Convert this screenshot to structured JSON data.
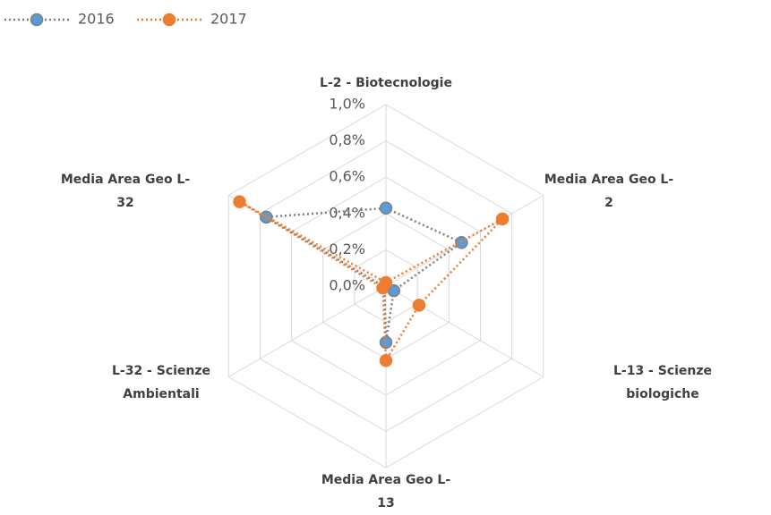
{
  "chart_data": {
    "type": "radar",
    "categories": [
      "L-2 - Biotecnologie",
      "Media Area Geo L-2",
      "L-13 - Scienze biologiche",
      "Media Area Geo L-13",
      "L-32 - Scienze Ambientali",
      "Media Area Geo L-32"
    ],
    "series": [
      {
        "name": "2016",
        "color": "#5b9bd5",
        "line_color": "#808080",
        "values": [
          0.43,
          0.48,
          0.05,
          0.31,
          0.01,
          0.76
        ]
      },
      {
        "name": "2017",
        "color": "#ed7d31",
        "line_color": "#ed7d31",
        "values": [
          0.02,
          0.74,
          0.21,
          0.41,
          0.02,
          0.93
        ]
      }
    ],
    "ylim": [
      0,
      1
    ],
    "yticks": [
      {
        "value": 0,
        "label": "0,0%"
      },
      {
        "value": 0.2,
        "label": "0,2%"
      },
      {
        "value": 0.4,
        "label": "0,4%"
      },
      {
        "value": 0.6,
        "label": "0,6%"
      },
      {
        "value": 0.8,
        "label": "0,8%"
      },
      {
        "value": 1,
        "label": "1,0%"
      }
    ],
    "grid": true,
    "legend": "top-left"
  }
}
